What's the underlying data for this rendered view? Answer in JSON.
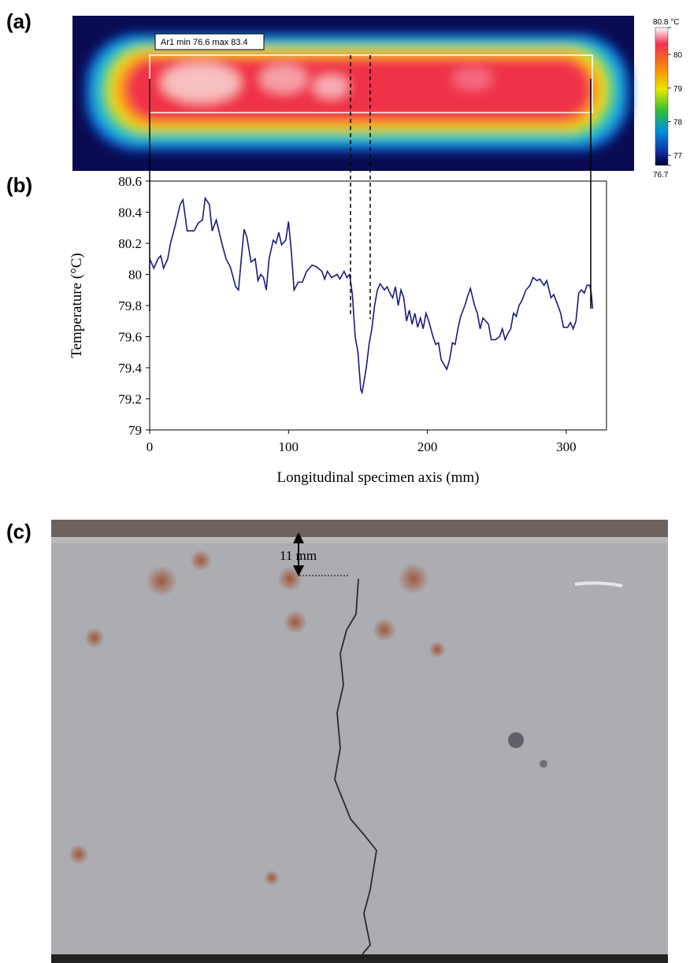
{
  "panels": {
    "a": "(a)",
    "b": "(b)",
    "c": "(c)"
  },
  "thermal_image": {
    "roi_label": "Ar1 min 76.6 max 83.4",
    "clim": [
      76.7,
      80.8
    ],
    "cticks": [
      {
        "value": 80.8,
        "label": "80.8 °C"
      },
      80,
      79,
      78,
      77,
      76.7
    ]
  },
  "photo": {
    "depth_label": "11 mm"
  },
  "chart_data": {
    "type": "line",
    "y_label": "Temperature (°C)",
    "x_label": "Longitudinal specimen axis (mm)",
    "color": "#1a1a80",
    "x": [
      0,
      3,
      6,
      8,
      10,
      13,
      15,
      18,
      22,
      24,
      27,
      32,
      35,
      38,
      40,
      43,
      45,
      48,
      52,
      55,
      58,
      62,
      64,
      66,
      68,
      70,
      73,
      76,
      78,
      80,
      82,
      84,
      86,
      89,
      91,
      93,
      95,
      98,
      100,
      102,
      104,
      107,
      110,
      113,
      117,
      120,
      124,
      126,
      128,
      131,
      135,
      137,
      140,
      142,
      144,
      146,
      148,
      150,
      152,
      153,
      156,
      158,
      160,
      162,
      164,
      166,
      169,
      171,
      173,
      175,
      177,
      179,
      181,
      183,
      185,
      187,
      189,
      191,
      193,
      195,
      197,
      199,
      201,
      204,
      206,
      208,
      210,
      212,
      214,
      216,
      218,
      220,
      222,
      224,
      227,
      229,
      231,
      234,
      236,
      238,
      240,
      242,
      244,
      246,
      249,
      252,
      254,
      256,
      258,
      260,
      262,
      264,
      266,
      268,
      271,
      274,
      276,
      279,
      281,
      284,
      286,
      289,
      291,
      294,
      296,
      298,
      301,
      303,
      305,
      307,
      309,
      311,
      313,
      315,
      317,
      318,
      319
    ],
    "values": [
      80.1,
      80.04,
      80.1,
      80.12,
      80.04,
      80.1,
      80.2,
      80.3,
      80.45,
      80.48,
      80.28,
      80.28,
      80.33,
      80.35,
      80.49,
      80.45,
      80.28,
      80.35,
      80.2,
      80.1,
      80.05,
      79.92,
      79.9,
      80.1,
      80.29,
      80.24,
      80.08,
      80.1,
      79.96,
      80,
      79.98,
      79.9,
      80.1,
      80.22,
      80.2,
      80.27,
      80.19,
      80.22,
      80.34,
      80.15,
      79.9,
      79.95,
      79.95,
      80.02,
      80.06,
      80.05,
      80.02,
      79.97,
      80.02,
      79.98,
      80,
      79.97,
      80.02,
      79.98,
      80,
      79.87,
      79.6,
      79.5,
      79.26,
      79.24,
      79.4,
      79.55,
      79.65,
      79.8,
      79.9,
      79.94,
      79.9,
      79.92,
      79.88,
      79.85,
      79.92,
      79.8,
      79.9,
      79.85,
      79.7,
      79.77,
      79.68,
      79.75,
      79.66,
      79.72,
      79.65,
      79.75,
      79.7,
      79.6,
      79.55,
      79.56,
      79.45,
      79.42,
      79.39,
      79.45,
      79.56,
      79.55,
      79.65,
      79.73,
      79.8,
      79.86,
      79.91,
      79.8,
      79.75,
      79.65,
      79.72,
      79.7,
      79.68,
      79.58,
      79.58,
      79.6,
      79.65,
      79.58,
      79.62,
      79.65,
      79.75,
      79.73,
      79.8,
      79.83,
      79.9,
      79.93,
      79.98,
      79.96,
      79.97,
      79.93,
      79.96,
      79.85,
      79.87,
      79.8,
      79.75,
      79.66,
      79.66,
      79.69,
      79.65,
      79.7,
      79.88,
      79.9,
      79.88,
      79.93,
      79.93,
      79.88,
      79.78
    ],
    "xlim": [
      0,
      329
    ],
    "ylim": [
      79,
      80.6
    ],
    "xticks": [
      0,
      100,
      200,
      300
    ],
    "yticks": [
      79,
      79.2,
      79.4,
      79.6,
      79.8,
      80,
      80.2,
      80.4,
      80.6
    ]
  }
}
